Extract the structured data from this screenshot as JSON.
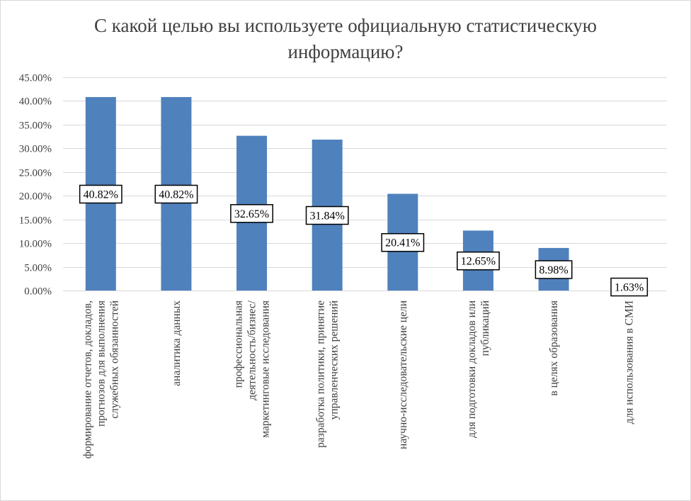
{
  "chart_data": {
    "type": "bar",
    "title_lines": [
      "С какой целью вы используете официальную статистическую",
      "информацию?"
    ],
    "categories": [
      [
        "формирование отчетов, докладов,",
        "прогнозов для выполнения",
        "служебных обязанностей"
      ],
      [
        "аналитика данных"
      ],
      [
        "профессиональная",
        "деятельность/бизнес/",
        "маркетинговые исследования"
      ],
      [
        "разработка политики, принятие",
        "управленческих решений"
      ],
      [
        "научно-исследовательские цели"
      ],
      [
        "для подготовки докладов или",
        "публикаций"
      ],
      [
        "в целях образования"
      ],
      [
        "для использования в СМИ"
      ]
    ],
    "values": [
      40.82,
      40.82,
      32.65,
      31.84,
      20.41,
      12.65,
      8.98,
      1.63
    ],
    "data_labels": [
      "40.82%",
      "40.82%",
      "32.65%",
      "31.84%",
      "20.41%",
      "12.65%",
      "8.98%",
      "1.63%"
    ],
    "ylim": [
      0,
      45
    ],
    "yticks": [
      0,
      5,
      10,
      15,
      20,
      25,
      30,
      35,
      40,
      45
    ],
    "ytick_labels": [
      "0.00%",
      "5.00%",
      "10.00%",
      "15.00%",
      "20.00%",
      "25.00%",
      "30.00%",
      "35.00%",
      "40.00%",
      "45.00%"
    ],
    "grid": true,
    "legend": "none",
    "xlabel": "",
    "ylabel": "",
    "colors": {
      "bar": "#4f81bd",
      "grid": "#d9d9d9",
      "text": "#404040"
    }
  }
}
